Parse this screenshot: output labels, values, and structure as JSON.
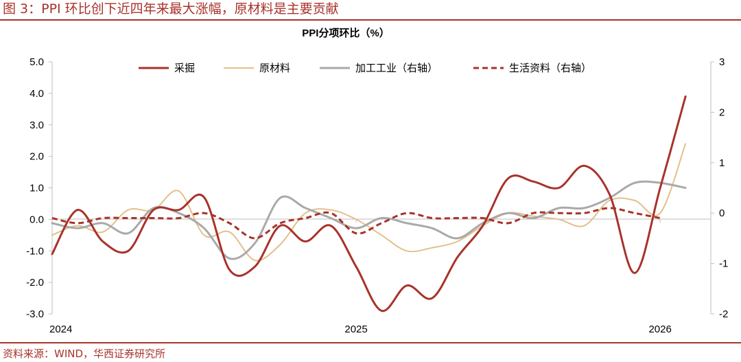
{
  "figure": {
    "title": "图 3：PPI 环比创下近四年来最大涨幅，原材料是主要贡献",
    "source": "资料来源：WIND，华西证券研究所"
  },
  "colors": {
    "accent": "#a8322a",
    "mining": "#a8322a",
    "raw_materials": "#e2c08a",
    "processing": "#a9a9a9",
    "living": "#a8322a"
  },
  "chart_data": {
    "type": "line",
    "title": "PPI分项环比（%）",
    "xlabel": "",
    "ylabel": "",
    "x_ticks": [
      "2024",
      "2025",
      "2026"
    ],
    "x_tick_index": [
      0,
      12,
      24
    ],
    "x_range": [
      0,
      26
    ],
    "ylim": [
      -3.0,
      5.0
    ],
    "y_ticks": [
      "5.0",
      "4.0",
      "3.0",
      "2.0",
      "1.0",
      "0.0",
      "-1.0",
      "-2.0",
      "-3.0"
    ],
    "y_tick_values": [
      5,
      4,
      3,
      2,
      1,
      0,
      -1,
      -2,
      -3
    ],
    "y2lim": [
      -2,
      3
    ],
    "y2_ticks": [
      "3",
      "2",
      "1",
      "0",
      "-1",
      "-2"
    ],
    "y2_tick_values": [
      3,
      2,
      1,
      0,
      -1,
      -2
    ],
    "legend_position": "top",
    "grid": false,
    "series": [
      {
        "name": "采掘",
        "axis": "left",
        "style": "solid",
        "color": "#a8322a",
        "width": 3,
        "x": [
          0,
          1,
          2,
          3,
          4,
          5,
          6,
          7,
          8,
          9,
          10,
          11,
          12,
          13,
          14,
          15,
          16,
          17,
          18,
          19,
          20,
          21,
          22,
          23,
          24,
          25,
          26
        ],
        "values": [
          -1.1,
          0.3,
          -0.7,
          -1.0,
          0.3,
          0.3,
          0.7,
          -1.6,
          -1.5,
          -0.2,
          -0.7,
          -0.2,
          -1.5,
          -2.9,
          -2.1,
          -2.5,
          -1.2,
          -0.2,
          1.3,
          1.2,
          1.0,
          1.7,
          0.8,
          -1.7,
          1.0,
          3.9,
          null
        ]
      },
      {
        "name": "原材料",
        "axis": "left",
        "style": "solid",
        "color": "#e2c08a",
        "width": 2,
        "x": [
          0,
          1,
          2,
          3,
          4,
          5,
          6,
          7,
          8,
          9,
          10,
          11,
          12,
          13,
          14,
          15,
          16,
          17,
          18,
          19,
          20,
          21,
          22,
          23,
          24,
          25,
          26
        ],
        "values": [
          -0.5,
          -0.2,
          -0.4,
          0.3,
          0.3,
          0.9,
          -0.5,
          -0.4,
          -1.3,
          -0.8,
          0.2,
          0.3,
          0.0,
          -0.5,
          -1.0,
          -0.9,
          -0.7,
          -0.2,
          0.2,
          0.1,
          0.0,
          -0.2,
          0.6,
          0.6,
          0.2,
          2.4,
          null
        ]
      },
      {
        "name": "加工工业（右轴）",
        "axis": "right",
        "style": "solid",
        "color": "#a9a9a9",
        "width": 3,
        "x": [
          0,
          1,
          2,
          3,
          4,
          5,
          6,
          7,
          8,
          9,
          10,
          11,
          12,
          13,
          14,
          15,
          16,
          17,
          18,
          19,
          20,
          21,
          22,
          23,
          24,
          25,
          26
        ],
        "values": [
          -0.2,
          -0.3,
          -0.2,
          -0.4,
          0.1,
          0.0,
          -0.3,
          -0.9,
          -0.6,
          0.3,
          0.1,
          -0.1,
          -0.3,
          -0.1,
          -0.2,
          -0.3,
          -0.5,
          -0.2,
          0.0,
          -0.1,
          0.1,
          0.1,
          0.3,
          0.6,
          0.6,
          0.5,
          null
        ]
      },
      {
        "name": "生活资料（右轴）",
        "axis": "right",
        "style": "dashed",
        "color": "#a8322a",
        "width": 3,
        "x": [
          0,
          1,
          2,
          3,
          4,
          5,
          6,
          7,
          8,
          9,
          10,
          11,
          12,
          13,
          14,
          15,
          16,
          17,
          18,
          19,
          20,
          21,
          22,
          23,
          24,
          25,
          26
        ],
        "values": [
          -0.1,
          -0.2,
          -0.1,
          -0.1,
          -0.1,
          -0.1,
          0.0,
          -0.2,
          -0.5,
          -0.2,
          -0.1,
          0.0,
          -0.4,
          -0.2,
          0.0,
          -0.1,
          -0.1,
          -0.1,
          -0.2,
          0.0,
          0.0,
          0.0,
          0.1,
          0.0,
          -0.1,
          null,
          null
        ]
      }
    ]
  }
}
